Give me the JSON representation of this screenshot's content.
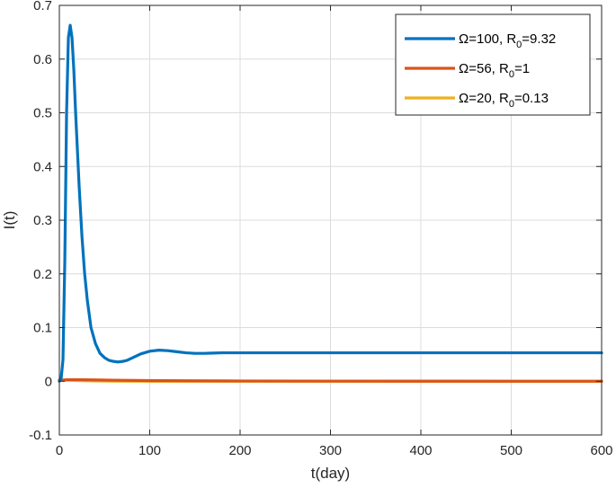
{
  "chart_data": {
    "type": "line",
    "xlabel": "t(day)",
    "ylabel": "I(t)",
    "xlim": [
      0,
      600
    ],
    "ylim": [
      -0.1,
      0.7
    ],
    "xticks": [
      "0",
      "100",
      "200",
      "300",
      "400",
      "500",
      "600"
    ],
    "yticks": [
      "-0.1",
      "0",
      "0.1",
      "0.2",
      "0.3",
      "0.4",
      "0.5",
      "0.6",
      "0.7"
    ],
    "grid": true,
    "legend_position": "top-right",
    "series": [
      {
        "name": "Ω=100, R0=9.32",
        "legend_parts": [
          "Ω=100, R",
          "0",
          "=9.32"
        ],
        "color": "#0072BD",
        "x": [
          0,
          2,
          4,
          6,
          8,
          10,
          12,
          14,
          16,
          18,
          20,
          22,
          25,
          28,
          31,
          35,
          40,
          45,
          50,
          55,
          60,
          65,
          70,
          75,
          80,
          90,
          100,
          110,
          120,
          130,
          140,
          150,
          160,
          170,
          180,
          190,
          200,
          250,
          300,
          400,
          500,
          600
        ],
        "y": [
          0,
          0.005,
          0.04,
          0.22,
          0.5,
          0.64,
          0.663,
          0.64,
          0.58,
          0.5,
          0.43,
          0.36,
          0.27,
          0.2,
          0.15,
          0.1,
          0.07,
          0.052,
          0.044,
          0.039,
          0.037,
          0.036,
          0.037,
          0.039,
          0.043,
          0.051,
          0.056,
          0.058,
          0.057,
          0.055,
          0.053,
          0.052,
          0.052,
          0.0525,
          0.053,
          0.053,
          0.053,
          0.053,
          0.053,
          0.053,
          0.053,
          0.053
        ]
      },
      {
        "name": "Ω=56, R0=1",
        "legend_parts": [
          "Ω=56, R",
          "0",
          "=1"
        ],
        "color": "#D95319",
        "x": [
          0,
          10,
          20,
          40,
          60,
          100,
          150,
          200,
          300,
          400,
          500,
          600
        ],
        "y": [
          0.002,
          0.003,
          0.003,
          0.0025,
          0.002,
          0.0012,
          0.0008,
          0.0005,
          0.0003,
          0.0002,
          0.0001,
          0.0001
        ]
      },
      {
        "name": "Ω=20, R0=0.13",
        "legend_parts": [
          "Ω=20, R",
          "0",
          "=0.13"
        ],
        "color": "#EDB120",
        "x": [
          0,
          10,
          20,
          40,
          60,
          100,
          150,
          200,
          300,
          400,
          500,
          600
        ],
        "y": [
          0.002,
          0.0018,
          0.0012,
          0.0005,
          0.0002,
          0,
          0,
          0,
          0,
          0,
          0,
          0
        ]
      }
    ]
  }
}
